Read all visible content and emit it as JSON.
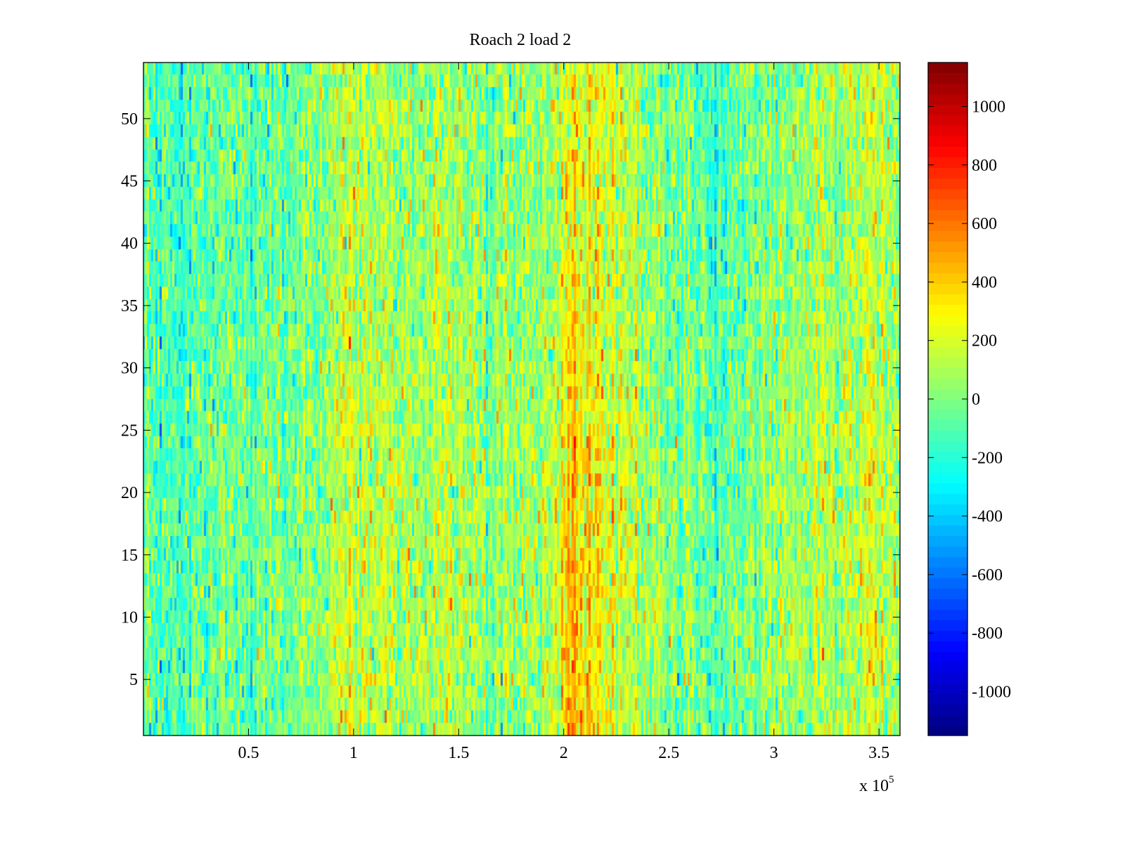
{
  "chart_data": {
    "type": "heatmap",
    "title": "Roach 2 load 2",
    "xlabel": "",
    "ylabel": "",
    "x_exponent_label": "x 10",
    "x_exponent": "5",
    "xlim": [
      0,
      3.6
    ],
    "ylim": [
      0.5,
      54.5
    ],
    "x_ticks": [
      0.5,
      1,
      1.5,
      2,
      2.5,
      3,
      3.5
    ],
    "x_tick_labels": [
      "0.5",
      "1",
      "1.5",
      "2",
      "2.5",
      "3",
      "3.5"
    ],
    "y_ticks": [
      5,
      10,
      15,
      20,
      25,
      30,
      35,
      40,
      45,
      50
    ],
    "y_tick_labels": [
      "5",
      "10",
      "15",
      "20",
      "25",
      "30",
      "35",
      "40",
      "45",
      "50"
    ],
    "rows": 54,
    "columns": 360,
    "colormap": "jet",
    "clim": [
      -1150,
      1150
    ],
    "colorbar_ticks": [
      1000,
      800,
      600,
      400,
      200,
      0,
      -200,
      -400,
      -600,
      -800,
      -1000
    ],
    "colorbar_tick_labels": [
      "1000",
      "800",
      "600",
      "400",
      "200",
      "0",
      "-200",
      "-400",
      "-600",
      "-800",
      "-1000"
    ],
    "column_profile": {
      "description": "approximate mean value per x-position (x in units of 10^5)",
      "x": [
        0.0,
        0.1,
        0.2,
        0.3,
        0.5,
        0.7,
        0.85,
        0.95,
        1.05,
        1.2,
        1.5,
        1.75,
        1.95,
        2.05,
        2.15,
        2.3,
        2.5,
        2.65,
        2.72,
        2.85,
        3.0,
        3.2,
        3.35,
        3.45,
        3.6
      ],
      "mean": [
        -120,
        -170,
        -180,
        -140,
        -90,
        -60,
        20,
        130,
        110,
        80,
        60,
        40,
        70,
        260,
        190,
        70,
        0,
        -90,
        -160,
        -80,
        10,
        60,
        110,
        150,
        90
      ]
    },
    "row_profile": {
      "description": "approximate offset per row-range (low rows warmer near x=2.05)",
      "rows": [
        1,
        10,
        20,
        30,
        40,
        54
      ],
      "offset": [
        20,
        50,
        40,
        20,
        0,
        10
      ]
    },
    "noise_std": 150,
    "colors": {
      "axis": "#000000",
      "background": "#ffffff"
    }
  }
}
